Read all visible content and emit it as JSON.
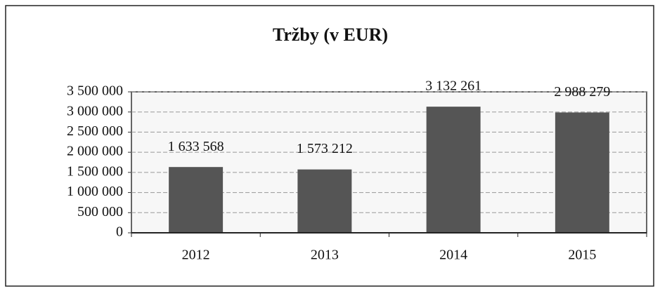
{
  "chart_data": {
    "type": "bar",
    "title": "Tržby (v EUR)",
    "categories": [
      "2012",
      "2013",
      "2014",
      "2015"
    ],
    "values": [
      1633568,
      1573212,
      3132261,
      2988279
    ],
    "value_labels": [
      "1 633 568",
      "1 573 212",
      "3 132 261",
      "2 988 279"
    ],
    "color": "#555555",
    "ylim": [
      0,
      3500000
    ],
    "yticks": [
      0,
      {
        "value": 500000,
        "label": "500 000"
      },
      {
        "value": 1000000,
        "label": "1 000 000"
      },
      {
        "value": 1500000,
        "label": "1 500 000"
      },
      {
        "value": 2000000,
        "label": "2 000 000"
      },
      {
        "value": 2500000,
        "label": "2 500 000"
      },
      {
        "value": 3000000,
        "label": "3 000 000"
      },
      {
        "value": 3500000,
        "label": "3 500 000"
      }
    ],
    "grid": true
  }
}
